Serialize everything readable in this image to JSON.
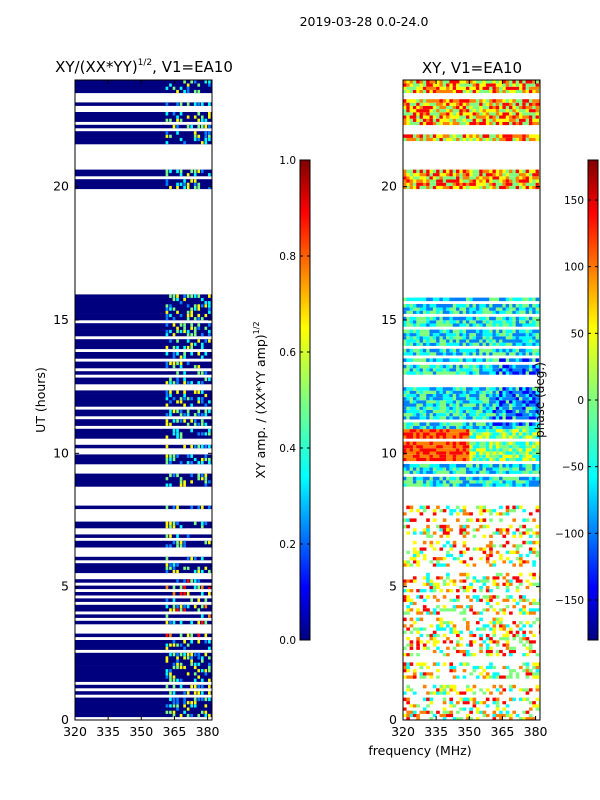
{
  "suptitle": "2019-03-28 0.0-24.0",
  "chart_data": [
    {
      "type": "heatmap",
      "title": "XY/(XX*YY)",
      "title_sup": "1/2",
      "title_suffix": ", V1=EA10",
      "xlabel": "",
      "ylabel": "UT (hours)",
      "xlim": [
        320,
        382
      ],
      "ylim": [
        0,
        24
      ],
      "xticks": [
        "320",
        "335",
        "350",
        "365",
        "380"
      ],
      "xtick_values": [
        320,
        335,
        350,
        365,
        380
      ],
      "yticks": [
        "0",
        "5",
        "10",
        "15",
        "20"
      ],
      "ytick_values": [
        0,
        5,
        10,
        15,
        20
      ],
      "colorbar": {
        "label": "XY amp. / (XX*YY amp)",
        "label_sup": "1/2",
        "range": [
          0.0,
          1.0
        ],
        "ticks": [
          "0.0",
          "0.2",
          "0.4",
          "0.6",
          "0.8",
          "1.0"
        ],
        "tick_values": [
          0.0,
          0.2,
          0.4,
          0.6,
          0.8,
          1.0
        ]
      }
    },
    {
      "type": "heatmap",
      "title": "XY, V1=EA10",
      "xlabel": "frequency (MHz)",
      "ylabel": "",
      "xlim": [
        320,
        382
      ],
      "ylim": [
        0,
        24
      ],
      "xticks": [
        "320",
        "335",
        "350",
        "365",
        "380"
      ],
      "xtick_values": [
        320,
        335,
        350,
        365,
        380
      ],
      "yticks": [
        "0",
        "5",
        "10",
        "15",
        "20"
      ],
      "ytick_values": [
        0,
        5,
        10,
        15,
        20
      ],
      "colorbar": {
        "label": "phase (deg.)",
        "range": [
          -180,
          180
        ],
        "ticks": [
          "150",
          "100",
          "50",
          "0",
          "−50",
          "−100",
          "−150"
        ],
        "tick_values": [
          150,
          100,
          50,
          0,
          -50,
          -100,
          -150
        ]
      }
    }
  ],
  "colors": {
    "jet": [
      "#00007f",
      "#0000ff",
      "#007fff",
      "#00ffff",
      "#7fff7f",
      "#ffff00",
      "#ff7f00",
      "#ff0000",
      "#7f0000"
    ]
  }
}
